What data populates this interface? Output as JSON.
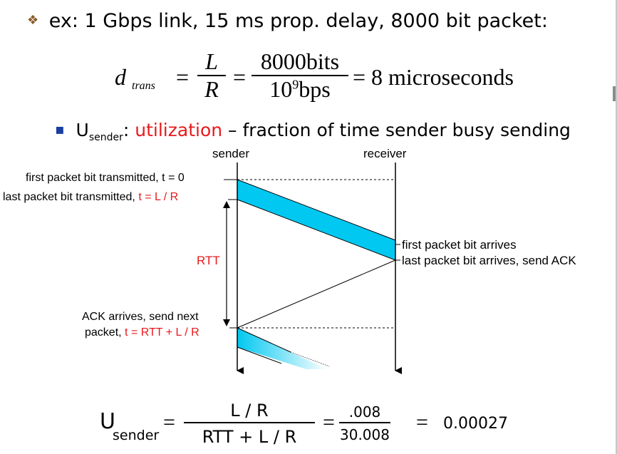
{
  "example": {
    "bullet": "❖",
    "text": "ex: 1 Gbps link, 15 ms prop. delay, 8000 bit packet:"
  },
  "formula_dtrans": {
    "d": "d",
    "sub": "trans",
    "eq1": "=",
    "L": "L",
    "R": "R",
    "eq2": "=",
    "num": "8000bits",
    "den_base": "10",
    "den_exp": "9",
    "den_unit": "bps",
    "eq3": "=",
    "result": "8 microseconds"
  },
  "utilization_line": {
    "bullet": "▪",
    "u": "U",
    "sub": "sender",
    "colon": ":",
    "term": "utilization",
    "rest": " – fraction of time sender busy sending"
  },
  "diagram": {
    "sender_label": "sender",
    "receiver_label": "receiver",
    "first_bit_tx": "first packet bit transmitted, t = 0",
    "last_bit_tx_prefix": "last packet bit transmitted,",
    "last_bit_tx_red": "t = L / R",
    "first_bit_arrives": "first packet bit arrives",
    "last_bit_arrives": "last packet bit arrives, send ACK",
    "rtt": "RTT",
    "ack_line1": "ACK arrives, send next",
    "ack_line2_prefix": "packet,",
    "ack_line2_red": "t = RTT + L / R"
  },
  "formula_usender": {
    "u": "U",
    "sub": "sender",
    "eq1": "=",
    "num": "L / R",
    "den": "RTT + L / R",
    "eq2": "=",
    "num2": ".008",
    "den2": "30.008",
    "eq3": "=",
    "result": "0.00027"
  },
  "colors": {
    "accent_red": "#e8191b",
    "packet_fill": "#00c8f0"
  }
}
